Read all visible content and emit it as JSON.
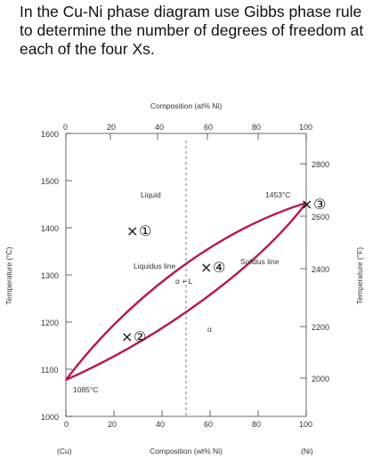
{
  "question": "In the Cu-Ni phase diagram use Gibbs phase rule to determine the number of degrees of freedom at each of the four Xs.",
  "axes": {
    "top_label": "Composition (at% Ni)",
    "bottom_label": "Composition (wt% Ni)",
    "left_label": "Temperature (°C)",
    "right_label": "Temperature (°F)",
    "left_end_label": "(Cu)",
    "right_end_label": "(Ni)",
    "bottom_ticks": [
      "0",
      "20",
      "40",
      "60",
      "80",
      "100"
    ],
    "top_ticks": [
      "0",
      "20",
      "40",
      "60",
      "80",
      "100"
    ],
    "left_ticks": [
      "1600",
      "1500",
      "1400",
      "1300",
      "1200",
      "1100",
      "1000"
    ],
    "right_ticks": [
      "2800",
      "2600",
      "2400",
      "2200",
      "2000"
    ]
  },
  "regions": {
    "liquid": "Liquid",
    "two_phase": "α + L",
    "alpha": "α",
    "liquidus": "Liquidus line",
    "solidus": "Solidus line",
    "cu_melt": "1085°C",
    "ni_melt": "1453°C"
  },
  "markers": [
    {
      "symbol": "×",
      "label": "①"
    },
    {
      "symbol": "×",
      "label": "②"
    },
    {
      "symbol": "×",
      "label": "③"
    },
    {
      "symbol": "×",
      "label": "④"
    }
  ],
  "colors": {
    "curve": "#b8184a",
    "frame": "#444444",
    "text": "#111111"
  }
}
